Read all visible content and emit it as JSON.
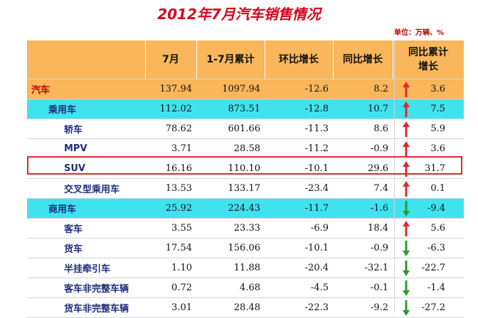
{
  "title": "2012年7月汽车销售情况",
  "unit": "单位：万辆、%",
  "headers": {
    "col1": "",
    "col2": "7月",
    "col3": "1-7月累计",
    "col4": "环比增长",
    "col5": "同比增长",
    "col6": "同比累计增长"
  },
  "rows": [
    {
      "name": "汽车",
      "july": "137.94",
      "cum": "1097.94",
      "mom": "-12.6",
      "yoy": "8.2",
      "cum_yoy": "3.6",
      "trend": "up"
    },
    {
      "name": "乘用车",
      "july": "112.02",
      "cum": "873.51",
      "mom": "-12.8",
      "yoy": "10.7",
      "cum_yoy": "7.5",
      "trend": "up"
    },
    {
      "name": "轿车",
      "july": "78.62",
      "cum": "601.66",
      "mom": "-11.3",
      "yoy": "8.6",
      "cum_yoy": "5.9",
      "trend": "up"
    },
    {
      "name": "MPV",
      "july": "3.71",
      "cum": "28.58",
      "mom": "-11.2",
      "yoy": "-0.9",
      "cum_yoy": "3.6",
      "trend": "up"
    },
    {
      "name": "SUV",
      "july": "16.16",
      "cum": "110.10",
      "mom": "-10.1",
      "yoy": "29.6",
      "cum_yoy": "31.7",
      "trend": "up"
    },
    {
      "name": "交叉型乘用车",
      "july": "13.53",
      "cum": "133.17",
      "mom": "-23.4",
      "yoy": "7.4",
      "cum_yoy": "0.1",
      "trend": "up"
    },
    {
      "name": "商用车",
      "july": "25.92",
      "cum": "224.43",
      "mom": "-11.7",
      "yoy": "-1.6",
      "cum_yoy": "-9.4",
      "trend": "down"
    },
    {
      "name": "客车",
      "july": "3.55",
      "cum": "23.33",
      "mom": "-6.9",
      "yoy": "18.4",
      "cum_yoy": "5.6",
      "trend": "up"
    },
    {
      "name": "货车",
      "july": "17.54",
      "cum": "156.06",
      "mom": "-10.1",
      "yoy": "-0.9",
      "cum_yoy": "-6.3",
      "trend": "down"
    },
    {
      "name": "半挂牵引车",
      "july": "1.10",
      "cum": "11.88",
      "mom": "-20.4",
      "yoy": "-32.1",
      "cum_yoy": "-22.7",
      "trend": "down"
    },
    {
      "name": "客车非完整车辆",
      "july": "0.72",
      "cum": "4.68",
      "mom": "-4.5",
      "yoy": "-0.1",
      "cum_yoy": "-1.4",
      "trend": "down"
    },
    {
      "name": "货车非完整车辆",
      "july": "3.01",
      "cum": "28.48",
      "mom": "-22.3",
      "yoy": "-9.2",
      "cum_yoy": "-27.2",
      "trend": "down"
    }
  ],
  "colors": {
    "header_bg": "#f9b65b",
    "category_bg": "#3fe3ef",
    "title": "#d9001b",
    "up_arrow": "#e0282e",
    "down_arrow": "#2e9a2e"
  }
}
